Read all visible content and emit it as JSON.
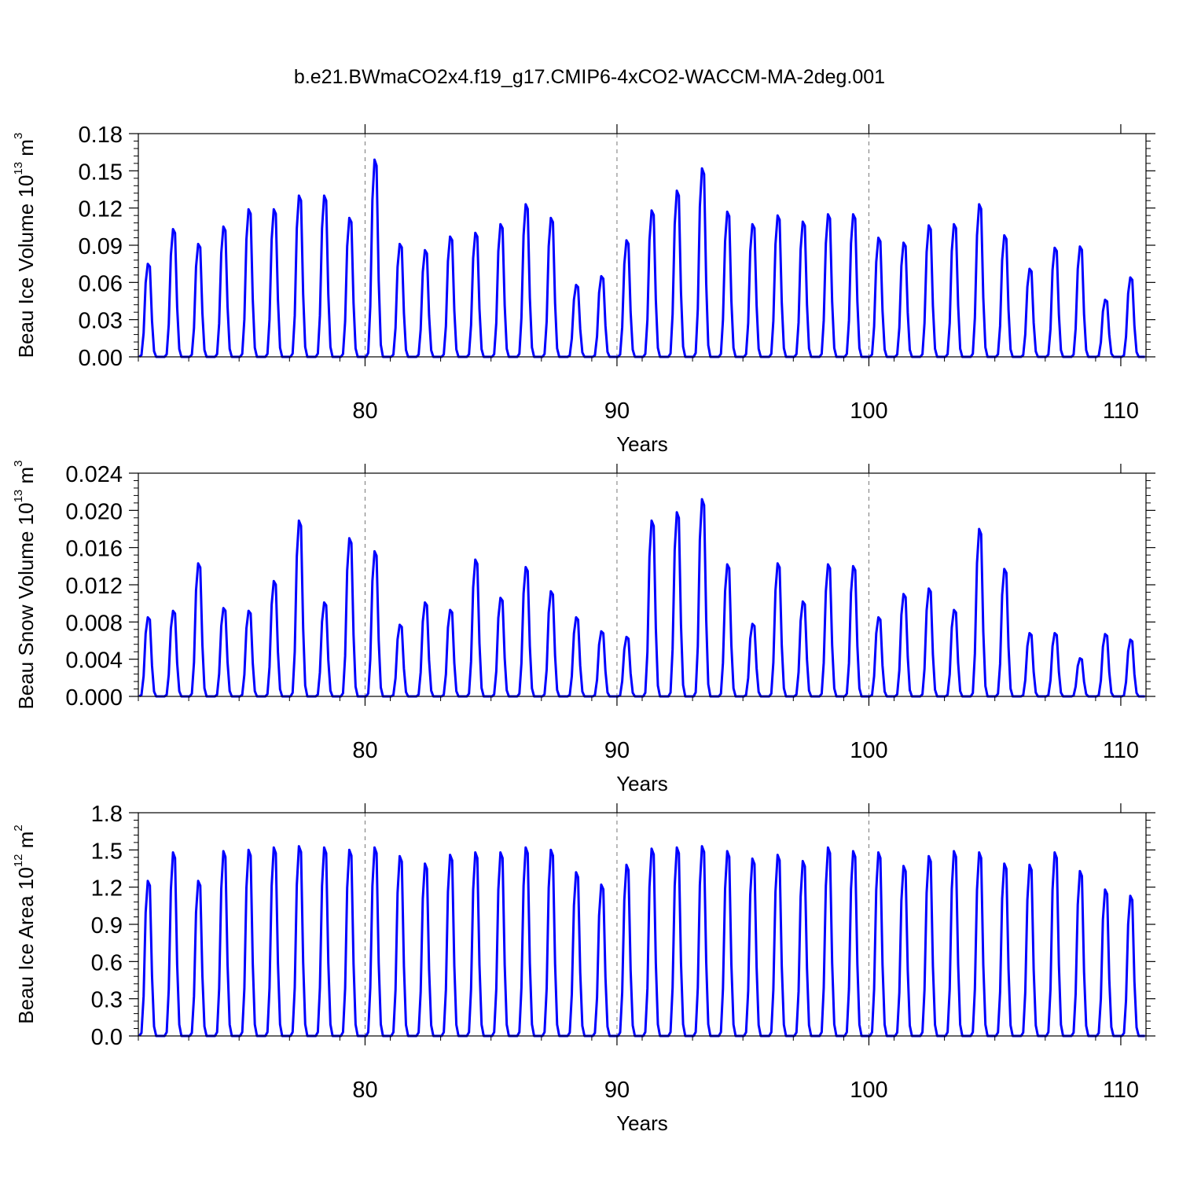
{
  "figure": {
    "title": "b.e21.BWmaCO2x4.f19_g17.CMIP6-4xCO2-WACCM-MA-2deg.001",
    "line_color": "#0000ff",
    "grid_color": "#777777"
  },
  "chart_data": [
    {
      "type": "line",
      "title": "b.e21.BWmaCO2x4.f19_g17.CMIP6-4xCO2-WACCM-MA-2deg.001",
      "ylabel": {
        "prefix": "Beau Ice Volume 10",
        "exp1": "13",
        "mid": " m",
        "exp2": "3"
      },
      "xlabel": "Years",
      "xlim": [
        71,
        111
      ],
      "ylim": [
        0,
        0.18
      ],
      "xticks": [
        80,
        90,
        100,
        110
      ],
      "xtick_labels": [
        "80",
        "90",
        "100",
        "110"
      ],
      "yticks": [
        0,
        0.03,
        0.06,
        0.09,
        0.12,
        0.15,
        0.18
      ],
      "ytick_labels": [
        "0.00",
        "0.03",
        "0.06",
        "0.09",
        "0.12",
        "0.15",
        "0.18"
      ],
      "grid": "dashed vertical at 80, 90, 100",
      "series": [
        {
          "peaks": [
            0.075,
            0.103,
            0.091,
            0.105,
            0.119,
            0.119,
            0.13,
            0.13,
            0.112,
            0.159,
            0.091,
            0.086,
            0.097,
            0.1,
            0.107,
            0.123,
            0.112,
            0.058,
            0.065,
            0.094,
            0.118,
            0.134,
            0.152,
            0.117,
            0.107,
            0.114,
            0.109,
            0.115,
            0.115,
            0.096,
            0.092,
            0.106,
            0.107,
            0.123,
            0.098,
            0.071,
            0.088,
            0.089,
            0.046,
            0.064
          ]
        }
      ]
    },
    {
      "type": "line",
      "title": "",
      "ylabel": {
        "prefix": "Beau Snow Volume 10",
        "exp1": "13",
        "mid": " m",
        "exp2": "3"
      },
      "xlabel": "Years",
      "xlim": [
        71,
        111
      ],
      "ylim": [
        0,
        0.024
      ],
      "xticks": [
        80,
        90,
        100,
        110
      ],
      "xtick_labels": [
        "80",
        "90",
        "100",
        "110"
      ],
      "yticks": [
        0,
        0.004,
        0.008,
        0.012,
        0.016,
        0.02,
        0.024
      ],
      "ytick_labels": [
        "0.000",
        "0.004",
        "0.008",
        "0.012",
        "0.016",
        "0.020",
        "0.024"
      ],
      "grid": "dashed vertical at 80, 90, 100",
      "series": [
        {
          "peaks": [
            0.0085,
            0.0092,
            0.0143,
            0.0095,
            0.0092,
            0.0124,
            0.0189,
            0.0101,
            0.017,
            0.0156,
            0.0077,
            0.0101,
            0.0093,
            0.0147,
            0.0106,
            0.0139,
            0.0113,
            0.0085,
            0.007,
            0.0064,
            0.0189,
            0.0198,
            0.0212,
            0.0142,
            0.0078,
            0.0143,
            0.0102,
            0.0142,
            0.014,
            0.0085,
            0.011,
            0.0116,
            0.0093,
            0.018,
            0.0137,
            0.0068,
            0.0068,
            0.0041,
            0.0067,
            0.0061
          ]
        }
      ]
    },
    {
      "type": "line",
      "title": "",
      "ylabel": {
        "prefix": "Beau Ice Area 10",
        "exp1": "12",
        "mid": " m",
        "exp2": "2"
      },
      "xlabel": "Years",
      "xlim": [
        71,
        111
      ],
      "ylim": [
        0,
        1.8
      ],
      "xticks": [
        80,
        90,
        100,
        110
      ],
      "xtick_labels": [
        "80",
        "90",
        "100",
        "110"
      ],
      "yticks": [
        0,
        0.3,
        0.6,
        0.9,
        1.2,
        1.5,
        1.8
      ],
      "ytick_labels": [
        "0.0",
        "0.3",
        "0.6",
        "0.9",
        "1.2",
        "1.5",
        "1.8"
      ],
      "grid": "dashed vertical at 80, 90, 100",
      "series": [
        {
          "peaks": [
            1.25,
            1.48,
            1.25,
            1.49,
            1.5,
            1.52,
            1.53,
            1.52,
            1.5,
            1.52,
            1.45,
            1.39,
            1.46,
            1.48,
            1.48,
            1.52,
            1.5,
            1.32,
            1.22,
            1.38,
            1.51,
            1.52,
            1.53,
            1.49,
            1.43,
            1.46,
            1.41,
            1.52,
            1.49,
            1.48,
            1.37,
            1.45,
            1.49,
            1.48,
            1.39,
            1.38,
            1.48,
            1.33,
            1.18,
            1.13
          ]
        }
      ]
    }
  ]
}
